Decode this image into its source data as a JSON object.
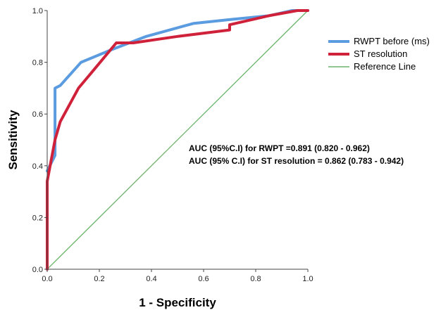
{
  "chart_data": {
    "type": "line",
    "title": "",
    "xlabel": "1 - Specificity",
    "ylabel": "Sensitivity",
    "xlim": [
      0,
      1
    ],
    "ylim": [
      0,
      1
    ],
    "x_ticks": [
      "0.0",
      "0.2",
      "0.4",
      "0.6",
      "0.8",
      "1.0"
    ],
    "y_ticks": [
      "0.0",
      "0.2",
      "0.4",
      "0.6",
      "0.8",
      "1.0"
    ],
    "grid": false,
    "legend_position": "right",
    "series": [
      {
        "name": "RWPT before (ms)",
        "color": "#5b9be0",
        "points": [
          [
            0.0,
            0.38
          ],
          [
            0.03,
            0.44
          ],
          [
            0.03,
            0.7
          ],
          [
            0.05,
            0.71
          ],
          [
            0.13,
            0.8
          ],
          [
            0.25,
            0.85
          ],
          [
            0.38,
            0.9
          ],
          [
            0.56,
            0.95
          ],
          [
            0.7,
            0.965
          ],
          [
            0.85,
            0.98
          ],
          [
            0.94,
            1.0
          ],
          [
            1.0,
            1.0
          ]
        ]
      },
      {
        "name": "ST resolution",
        "color": "#d0213b",
        "points": [
          [
            0.0,
            0.0
          ],
          [
            0.0,
            0.34
          ],
          [
            0.03,
            0.5
          ],
          [
            0.05,
            0.57
          ],
          [
            0.12,
            0.7
          ],
          [
            0.17,
            0.76
          ],
          [
            0.265,
            0.875
          ],
          [
            0.33,
            0.875
          ],
          [
            0.5,
            0.9
          ],
          [
            0.7,
            0.925
          ],
          [
            0.7,
            0.945
          ],
          [
            0.85,
            0.98
          ],
          [
            0.96,
            1.0
          ],
          [
            1.0,
            1.0
          ]
        ]
      },
      {
        "name": "Reference Line",
        "color": "#6cb46a",
        "points": [
          [
            0.0,
            0.0
          ],
          [
            1.0,
            1.0
          ]
        ]
      }
    ],
    "annotations": [
      "AUC (95%C.I) for RWPT =0.891 (0.820 - 0.962)",
      "AUC (95% C.I) for ST resolution = 0.862 (0.783 - 0.942)"
    ]
  }
}
